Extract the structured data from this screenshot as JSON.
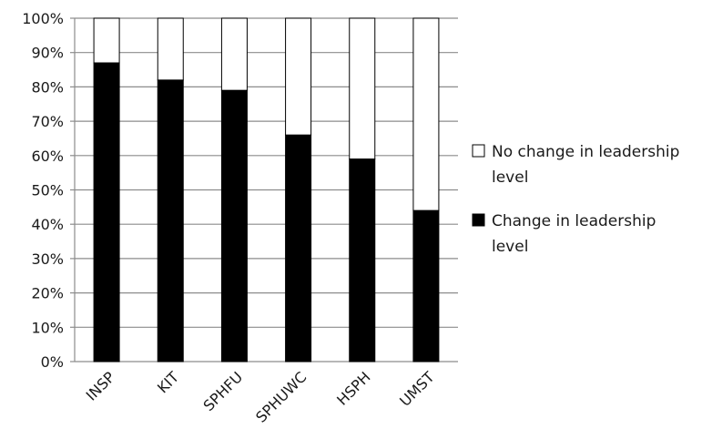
{
  "chart_data": {
    "type": "bar",
    "stacked": true,
    "percent_stacked": true,
    "categories": [
      "INSP",
      "KIT",
      "SPHFU",
      "SPHUWC",
      "HSPH",
      "UMST"
    ],
    "series": [
      {
        "name": "Change in leadership level",
        "name_lines": [
          "Change in leadership",
          "level"
        ],
        "color": "#000000",
        "values": [
          87,
          82,
          79,
          66,
          59,
          44
        ]
      },
      {
        "name": "No change in leadership level",
        "name_lines": [
          "No change in leadership",
          "level"
        ],
        "color": "#ffffff",
        "values": [
          13,
          18,
          21,
          34,
          41,
          56
        ]
      }
    ],
    "y_ticks": [
      "0%",
      "10%",
      "20%",
      "30%",
      "40%",
      "50%",
      "60%",
      "70%",
      "80%",
      "90%",
      "100%"
    ],
    "ylim": [
      0,
      100
    ],
    "grid": true,
    "legend_position": "right",
    "legend_order": [
      1,
      0
    ]
  }
}
